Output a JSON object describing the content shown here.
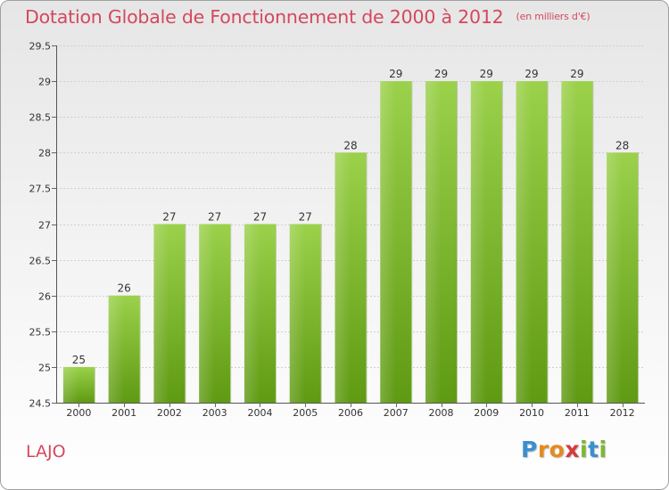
{
  "title": "Dotation Globale de Fonctionnement de 2000 à 2012",
  "unit_note": "(en milliers d'€)",
  "commune": "LAJO",
  "logo": {
    "text": "Proxiti",
    "letters": [
      "P",
      "r",
      "o",
      "x",
      "i",
      "t",
      "i"
    ],
    "colors": [
      "#3a8fd0",
      "#e68a1e",
      "#e68a1e",
      "#d63a3a",
      "#7db732",
      "#3a8fd0",
      "#7db732"
    ]
  },
  "colors": {
    "title": "#d4485e",
    "bar_top": "#9bd14b",
    "bar_bottom": "#5f9a13",
    "grid": "#d0d0d0"
  },
  "chart_data": {
    "type": "bar",
    "categories": [
      "2000",
      "2001",
      "2002",
      "2003",
      "2004",
      "2005",
      "2006",
      "2007",
      "2008",
      "2009",
      "2010",
      "2011",
      "2012"
    ],
    "values": [
      25,
      26,
      27,
      27,
      27,
      27,
      28,
      29,
      29,
      29,
      29,
      29,
      28
    ],
    "data_labels": [
      "25",
      "26",
      "27",
      "27",
      "27",
      "27",
      "28",
      "29",
      "29",
      "29",
      "29",
      "29",
      "28"
    ],
    "title": "Dotation Globale de Fonctionnement de 2000 à 2012",
    "xlabel": "",
    "ylabel": "",
    "ylim": [
      24.5,
      29.5
    ],
    "yticks": [
      24.5,
      25,
      25.5,
      26,
      26.5,
      27,
      27.5,
      28,
      28.5,
      29,
      29.5
    ],
    "ytick_labels": [
      "24.5",
      "25",
      "25.5",
      "26",
      "26.5",
      "27",
      "27.5",
      "28",
      "28.5",
      "29",
      "29.5"
    ],
    "grid": true
  }
}
